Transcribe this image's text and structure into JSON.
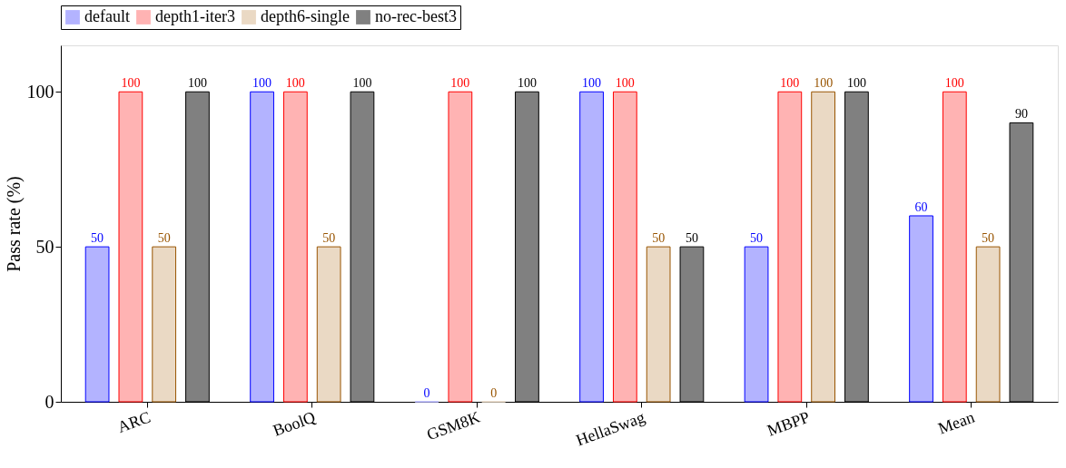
{
  "chart_data": {
    "type": "bar",
    "ylabel": "Pass rate (%)",
    "categories": [
      "ARC",
      "BoolQ",
      "GSM8K",
      "HellaSwag",
      "MBPP",
      "Mean"
    ],
    "series": [
      {
        "name": "default",
        "color": "#b3b3ff",
        "values": [
          50,
          100,
          0,
          100,
          50,
          60
        ]
      },
      {
        "name": "depth1-iter3",
        "color": "#ffb3b3",
        "values": [
          100,
          100,
          100,
          100,
          100,
          100
        ]
      },
      {
        "name": "depth6-single",
        "color": "#ead9c4",
        "values": [
          50,
          50,
          0,
          50,
          100,
          50
        ]
      },
      {
        "name": "no-rec-best3",
        "color": "#808080",
        "values": [
          100,
          100,
          100,
          50,
          100,
          90
        ]
      }
    ],
    "ylim": [
      0,
      115
    ],
    "yticks": [
      0,
      50,
      100
    ],
    "grid": false,
    "legend": "top",
    "data_labels": true
  }
}
